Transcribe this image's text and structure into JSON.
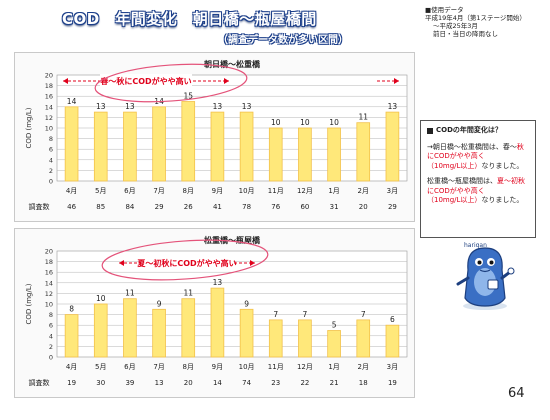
{
  "header": {
    "title": "COD　年間変化　朝日橋～瓶屋橋間",
    "subtitle": "（調査データ数が多い区間）",
    "data_note": [
      "■使用データ",
      "平成19年4月（第1ステージ開始）",
      "～平成25年3月",
      "前日・当日の降雨なし"
    ]
  },
  "charts": {
    "top": {
      "heading": "朝日橋～松重橋",
      "annotation": "春～秋にCODがやや高い",
      "count_label": "調査数",
      "counts": [
        "46",
        "85",
        "84",
        "29",
        "26",
        "41",
        "78",
        "76",
        "60",
        "31",
        "20",
        "29"
      ]
    },
    "bottom": {
      "heading": "松重橋～瓶屋橋",
      "annotation": "夏～初秋にCODがやや高い",
      "count_label": "調査数",
      "counts": [
        "19",
        "30",
        "39",
        "13",
        "20",
        "14",
        "74",
        "23",
        "22",
        "21",
        "18",
        "19"
      ]
    }
  },
  "chart_data": [
    {
      "type": "bar",
      "title": "朝日橋～松重橋",
      "categories": [
        "4月",
        "5月",
        "6月",
        "7月",
        "8月",
        "9月",
        "10月",
        "11月",
        "12月",
        "1月",
        "2月",
        "3月"
      ],
      "values": [
        14,
        13,
        13,
        14,
        15,
        13,
        13,
        10,
        10,
        10,
        11,
        13
      ],
      "ylabel": "COD (mg/L)",
      "ylim": [
        0,
        20
      ],
      "yticks": [
        0,
        2,
        4,
        6,
        8,
        10,
        12,
        14,
        16,
        18,
        20
      ],
      "highlight_colors": [
        "#ffe87a",
        "#f3c14a"
      ],
      "grid": true
    },
    {
      "type": "bar",
      "title": "松重橋～瓶屋橋",
      "categories": [
        "4月",
        "5月",
        "6月",
        "7月",
        "8月",
        "9月",
        "10月",
        "11月",
        "12月",
        "1月",
        "2月",
        "3月"
      ],
      "values": [
        8,
        10,
        11,
        9,
        11,
        13,
        9,
        7,
        7,
        5,
        7,
        6
      ],
      "ylabel": "COD (mg/L)",
      "ylim": [
        0,
        20
      ],
      "yticks": [
        0,
        2,
        4,
        6,
        8,
        10,
        12,
        14,
        16,
        18,
        20
      ],
      "highlight_colors": [
        "#ffe87a",
        "#f3c14a"
      ],
      "grid": true
    }
  ],
  "sidebox": {
    "heading": "CODの年間変化は？",
    "para1_a": "→朝日橋～松重橋間は、春～",
    "para1_red": "秋にCODがやや高く",
    "para1_red2": "（10mg/L以上）",
    "para1_b": "なりました。",
    "para2_a": "松重橋～瓶屋橋間は、",
    "para2_red": "夏～初秋にCODがやや高く",
    "para2_red2": "（10mg/L以上）",
    "para2_b": "なりました。"
  },
  "mascot": {
    "label": "hariqan"
  },
  "page_number": "64"
}
